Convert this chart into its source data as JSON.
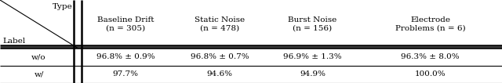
{
  "col_headers": [
    "Baseline Drift\n(n = 305)",
    "Static Noise\n(n = 478)",
    "Burst Noise\n(n = 156)",
    "Electrode\nProblems (n = 6)"
  ],
  "row_labels": [
    "w/o",
    "w/"
  ],
  "corner_top": "Type",
  "corner_bottom": "Label",
  "cell_data": [
    [
      "96.8% ± 0.9%",
      "96.8% ± 0.7%",
      "96.9% ± 1.3%",
      "96.3% ± 8.0%"
    ],
    [
      "97.7%",
      "94.6%",
      "94.9%",
      "100.0%"
    ]
  ],
  "figsize": [
    6.4,
    1.06
  ],
  "dpi": 100,
  "background": "#ffffff",
  "text_color": "#000000",
  "font_size": 7.5
}
